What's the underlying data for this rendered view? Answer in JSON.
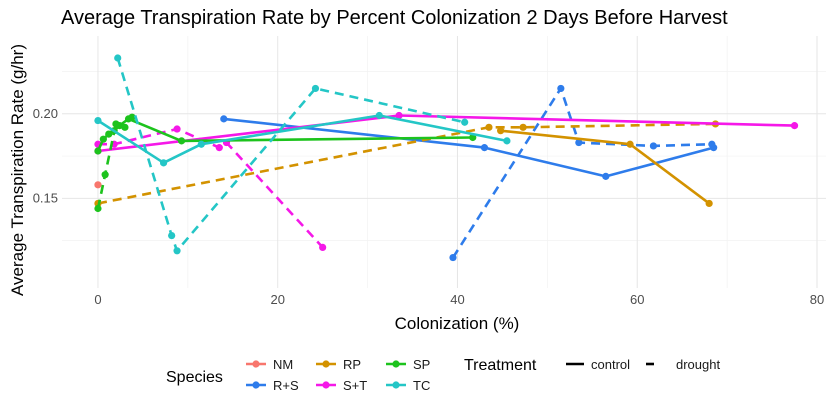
{
  "chart_data": {
    "type": "line",
    "title": "Average Transpiration Rate by Percent Colonization 2 Days Before Harvest",
    "xlabel": "Colonization (%)",
    "ylabel": "Average Transpiration Rate (g/hr)",
    "xlim": [
      -4,
      81
    ],
    "ylim": [
      0.097,
      0.246
    ],
    "xticks": [
      0,
      20,
      40,
      60,
      80
    ],
    "yticks": [
      0.15,
      0.2
    ],
    "ytick_labels": [
      "0.15",
      "0.20"
    ],
    "grid": true,
    "legend_position": "bottom",
    "legend_species_title": "Species",
    "legend_treatment_title": "Treatment",
    "series": [
      {
        "species": "NM",
        "treatment": "control",
        "color": "#F8766D",
        "points": [
          [
            0,
            0.158
          ]
        ]
      },
      {
        "species": "R+S",
        "treatment": "control",
        "color": "#2E7CEB",
        "points": [
          [
            14,
            0.197
          ],
          [
            43,
            0.18
          ],
          [
            56.5,
            0.163
          ],
          [
            68.5,
            0.18
          ]
        ]
      },
      {
        "species": "R+S",
        "treatment": "drought",
        "color": "#2E7CEB",
        "points": [
          [
            39.5,
            0.115
          ],
          [
            51.5,
            0.215
          ],
          [
            53.5,
            0.183
          ],
          [
            61.8,
            0.181
          ],
          [
            68.3,
            0.182
          ]
        ]
      },
      {
        "species": "RP",
        "treatment": "control",
        "color": "#D39200",
        "points": [
          [
            44.8,
            0.19
          ],
          [
            59.2,
            0.182
          ],
          [
            68,
            0.147
          ]
        ]
      },
      {
        "species": "RP",
        "treatment": "drought",
        "color": "#D39200",
        "points": [
          [
            0,
            0.147
          ],
          [
            43.5,
            0.192
          ],
          [
            47.3,
            0.192
          ],
          [
            68.7,
            0.194
          ]
        ]
      },
      {
        "species": "S+T",
        "treatment": "control",
        "color": "#F518E8",
        "points": [
          [
            0,
            0.178
          ],
          [
            33.5,
            0.199
          ],
          [
            77.5,
            0.193
          ]
        ]
      },
      {
        "species": "S+T",
        "treatment": "drought",
        "color": "#F518E8",
        "points": [
          [
            0,
            0.182
          ],
          [
            1.8,
            0.182
          ],
          [
            8.8,
            0.191
          ],
          [
            13.5,
            0.18
          ],
          [
            14.3,
            0.183
          ],
          [
            25,
            0.121
          ]
        ]
      },
      {
        "species": "SP",
        "treatment": "control",
        "color": "#1DC31D",
        "points": [
          [
            0,
            0.178
          ],
          [
            0.6,
            0.185
          ],
          [
            1.2,
            0.188
          ],
          [
            1.8,
            0.19
          ],
          [
            2.4,
            0.193
          ],
          [
            3.4,
            0.197
          ],
          [
            9.3,
            0.184
          ],
          [
            41.7,
            0.186
          ]
        ]
      },
      {
        "species": "SP",
        "treatment": "drought",
        "color": "#1DC31D",
        "points": [
          [
            0,
            0.144
          ],
          [
            0.8,
            0.164
          ],
          [
            2,
            0.194
          ],
          [
            3,
            0.192
          ],
          [
            3.8,
            0.198
          ]
        ]
      },
      {
        "species": "TC",
        "treatment": "control",
        "color": "#24C6C6",
        "points": [
          [
            0,
            0.196
          ],
          [
            7.3,
            0.171
          ],
          [
            11.5,
            0.182
          ],
          [
            31.3,
            0.199
          ],
          [
            45.5,
            0.184
          ]
        ]
      },
      {
        "species": "TC",
        "treatment": "drought",
        "color": "#24C6C6",
        "points": [
          [
            2.2,
            0.233
          ],
          [
            8.2,
            0.128
          ],
          [
            8.8,
            0.119
          ],
          [
            24.2,
            0.215
          ],
          [
            40.8,
            0.195
          ]
        ]
      }
    ],
    "legend_species": [
      {
        "label": "NM",
        "color": "#F8766D"
      },
      {
        "label": "R+S",
        "color": "#2E7CEB"
      },
      {
        "label": "RP",
        "color": "#D39200"
      },
      {
        "label": "S+T",
        "color": "#F518E8"
      },
      {
        "label": "SP",
        "color": "#1DC31D"
      },
      {
        "label": "TC",
        "color": "#24C6C6"
      }
    ],
    "legend_treatment": [
      {
        "label": "control",
        "dash": "solid"
      },
      {
        "label": "drought",
        "dash": "dashed"
      }
    ]
  }
}
